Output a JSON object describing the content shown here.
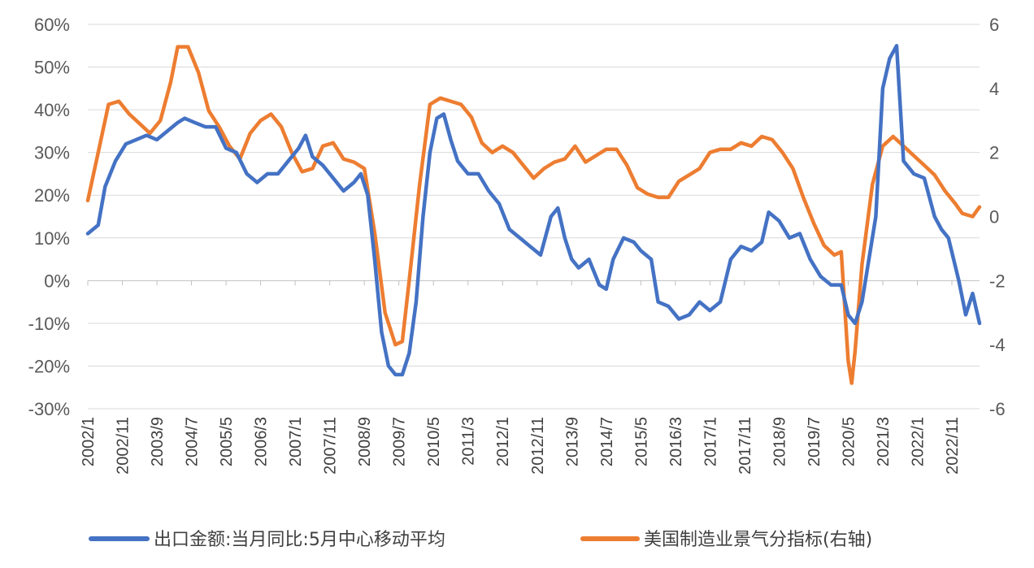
{
  "colors": {
    "export": "#4472C4",
    "pmi": "#ED7D31",
    "grid": "#d9d9d9",
    "text": "#595959"
  },
  "legend": {
    "export_label": "出口金额:当月同比:5月中心移动平均",
    "pmi_label": "美国制造业景气分指标(右轴)"
  },
  "chart_data": {
    "type": "line",
    "x_labels": [
      "2002/1",
      "2002/11",
      "2003/9",
      "2004/7",
      "2005/5",
      "2006/3",
      "2007/1",
      "2007/11",
      "2008/9",
      "2009/7",
      "2010/5",
      "2011/3",
      "2012/1",
      "2012/11",
      "2013/9",
      "2014/7",
      "2015/5",
      "2016/3",
      "2017/1",
      "2017/11",
      "2018/9",
      "2019/7",
      "2020/5",
      "2021/3",
      "2022/1",
      "2022/11"
    ],
    "x_range": [
      "2002-01",
      "2023-07"
    ],
    "y_left": {
      "min": -30,
      "max": 60,
      "step": 10,
      "tick_labels": [
        "-30%",
        "-20%",
        "-10%",
        "0%",
        "10%",
        "20%",
        "30%",
        "40%",
        "50%",
        "60%"
      ]
    },
    "y_right": {
      "min": -6,
      "max": 6,
      "step": 2,
      "tick_labels": [
        "-6",
        "-4",
        "-2",
        "0",
        "2",
        "4",
        "6"
      ]
    },
    "grid": "horizontal",
    "legend_position": "bottom",
    "series": [
      {
        "name": "出口金额:当月同比:5月中心移动平均",
        "axis": "left",
        "points": [
          [
            "2002-01",
            11
          ],
          [
            "2002-04",
            13
          ],
          [
            "2002-06",
            22
          ],
          [
            "2002-09",
            28
          ],
          [
            "2002-12",
            32
          ],
          [
            "2003-03",
            33
          ],
          [
            "2003-06",
            34
          ],
          [
            "2003-09",
            33
          ],
          [
            "2003-12",
            35
          ],
          [
            "2004-03",
            37
          ],
          [
            "2004-05",
            38
          ],
          [
            "2004-08",
            37
          ],
          [
            "2004-11",
            36
          ],
          [
            "2005-02",
            36
          ],
          [
            "2005-05",
            31
          ],
          [
            "2005-08",
            30
          ],
          [
            "2005-11",
            25
          ],
          [
            "2006-02",
            23
          ],
          [
            "2006-05",
            25
          ],
          [
            "2006-08",
            25
          ],
          [
            "2006-11",
            28
          ],
          [
            "2007-02",
            31
          ],
          [
            "2007-04",
            34
          ],
          [
            "2007-06",
            29
          ],
          [
            "2007-09",
            27
          ],
          [
            "2007-12",
            24
          ],
          [
            "2008-03",
            21
          ],
          [
            "2008-06",
            23
          ],
          [
            "2008-08",
            25
          ],
          [
            "2008-10",
            20
          ],
          [
            "2008-12",
            5
          ],
          [
            "2009-02",
            -12
          ],
          [
            "2009-04",
            -20
          ],
          [
            "2009-06",
            -22
          ],
          [
            "2009-08",
            -22
          ],
          [
            "2009-10",
            -17
          ],
          [
            "2009-12",
            -5
          ],
          [
            "2010-02",
            15
          ],
          [
            "2010-04",
            30
          ],
          [
            "2010-06",
            38
          ],
          [
            "2010-08",
            39
          ],
          [
            "2010-10",
            33
          ],
          [
            "2010-12",
            28
          ],
          [
            "2011-03",
            25
          ],
          [
            "2011-06",
            25
          ],
          [
            "2011-09",
            21
          ],
          [
            "2011-12",
            18
          ],
          [
            "2012-03",
            12
          ],
          [
            "2012-06",
            10
          ],
          [
            "2012-09",
            8
          ],
          [
            "2012-12",
            6
          ],
          [
            "2013-03",
            15
          ],
          [
            "2013-05",
            17
          ],
          [
            "2013-07",
            10
          ],
          [
            "2013-09",
            5
          ],
          [
            "2013-11",
            3
          ],
          [
            "2014-02",
            5
          ],
          [
            "2014-05",
            -1
          ],
          [
            "2014-07",
            -2
          ],
          [
            "2014-09",
            5
          ],
          [
            "2014-12",
            10
          ],
          [
            "2015-03",
            9
          ],
          [
            "2015-05",
            7
          ],
          [
            "2015-08",
            5
          ],
          [
            "2015-10",
            -5
          ],
          [
            "2016-01",
            -6
          ],
          [
            "2016-04",
            -9
          ],
          [
            "2016-07",
            -8
          ],
          [
            "2016-10",
            -5
          ],
          [
            "2017-01",
            -7
          ],
          [
            "2017-04",
            -5
          ],
          [
            "2017-07",
            5
          ],
          [
            "2017-10",
            8
          ],
          [
            "2018-01",
            7
          ],
          [
            "2018-04",
            9
          ],
          [
            "2018-06",
            16
          ],
          [
            "2018-09",
            14
          ],
          [
            "2018-12",
            10
          ],
          [
            "2019-03",
            11
          ],
          [
            "2019-06",
            5
          ],
          [
            "2019-09",
            1
          ],
          [
            "2019-12",
            -1
          ],
          [
            "2020-03",
            -1
          ],
          [
            "2020-05",
            -8
          ],
          [
            "2020-07",
            -10
          ],
          [
            "2020-09",
            -5
          ],
          [
            "2020-11",
            5
          ],
          [
            "2021-01",
            15
          ],
          [
            "2021-03",
            45
          ],
          [
            "2021-05",
            52
          ],
          [
            "2021-07",
            55
          ],
          [
            "2021-09",
            28
          ],
          [
            "2021-12",
            25
          ],
          [
            "2022-03",
            24
          ],
          [
            "2022-06",
            15
          ],
          [
            "2022-08",
            12
          ],
          [
            "2022-10",
            10
          ],
          [
            "2023-01",
            0
          ],
          [
            "2023-03",
            -8
          ],
          [
            "2023-05",
            -3
          ],
          [
            "2023-07",
            -10
          ]
        ]
      },
      {
        "name": "美国制造业景气分指标(右轴)",
        "axis": "right",
        "points": [
          [
            "2002-01",
            0.5
          ],
          [
            "2002-04",
            2.0
          ],
          [
            "2002-07",
            3.5
          ],
          [
            "2002-10",
            3.6
          ],
          [
            "2003-01",
            3.2
          ],
          [
            "2003-04",
            2.9
          ],
          [
            "2003-07",
            2.6
          ],
          [
            "2003-10",
            3.0
          ],
          [
            "2004-01",
            4.2
          ],
          [
            "2004-03",
            5.3
          ],
          [
            "2004-06",
            5.3
          ],
          [
            "2004-09",
            4.5
          ],
          [
            "2004-12",
            3.3
          ],
          [
            "2005-03",
            2.8
          ],
          [
            "2005-06",
            2.2
          ],
          [
            "2005-09",
            1.8
          ],
          [
            "2005-12",
            2.6
          ],
          [
            "2006-03",
            3.0
          ],
          [
            "2006-06",
            3.2
          ],
          [
            "2006-09",
            2.8
          ],
          [
            "2006-12",
            2.0
          ],
          [
            "2007-03",
            1.4
          ],
          [
            "2007-06",
            1.5
          ],
          [
            "2007-09",
            2.2
          ],
          [
            "2007-12",
            2.3
          ],
          [
            "2008-03",
            1.8
          ],
          [
            "2008-06",
            1.7
          ],
          [
            "2008-09",
            1.5
          ],
          [
            "2008-12",
            -0.5
          ],
          [
            "2009-03",
            -3.0
          ],
          [
            "2009-06",
            -4.0
          ],
          [
            "2009-08",
            -3.9
          ],
          [
            "2009-10",
            -2.0
          ],
          [
            "2010-01",
            1.0
          ],
          [
            "2010-04",
            3.5
          ],
          [
            "2010-07",
            3.7
          ],
          [
            "2010-10",
            3.6
          ],
          [
            "2011-01",
            3.5
          ],
          [
            "2011-04",
            3.1
          ],
          [
            "2011-07",
            2.3
          ],
          [
            "2011-10",
            2.0
          ],
          [
            "2012-01",
            2.2
          ],
          [
            "2012-04",
            2.0
          ],
          [
            "2012-07",
            1.6
          ],
          [
            "2012-10",
            1.2
          ],
          [
            "2013-01",
            1.5
          ],
          [
            "2013-04",
            1.7
          ],
          [
            "2013-07",
            1.8
          ],
          [
            "2013-10",
            2.2
          ],
          [
            "2014-01",
            1.7
          ],
          [
            "2014-04",
            1.9
          ],
          [
            "2014-07",
            2.1
          ],
          [
            "2014-10",
            2.1
          ],
          [
            "2015-01",
            1.6
          ],
          [
            "2015-04",
            0.9
          ],
          [
            "2015-07",
            0.7
          ],
          [
            "2015-10",
            0.6
          ],
          [
            "2016-01",
            0.6
          ],
          [
            "2016-04",
            1.1
          ],
          [
            "2016-07",
            1.3
          ],
          [
            "2016-10",
            1.5
          ],
          [
            "2017-01",
            2.0
          ],
          [
            "2017-04",
            2.1
          ],
          [
            "2017-07",
            2.1
          ],
          [
            "2017-10",
            2.3
          ],
          [
            "2018-01",
            2.2
          ],
          [
            "2018-04",
            2.5
          ],
          [
            "2018-07",
            2.4
          ],
          [
            "2018-10",
            2.0
          ],
          [
            "2019-01",
            1.5
          ],
          [
            "2019-04",
            0.6
          ],
          [
            "2019-07",
            -0.2
          ],
          [
            "2019-10",
            -0.9
          ],
          [
            "2020-01",
            -1.2
          ],
          [
            "2020-03",
            -1.1
          ],
          [
            "2020-05",
            -4.5
          ],
          [
            "2020-06",
            -5.2
          ],
          [
            "2020-07",
            -4.2
          ],
          [
            "2020-09",
            -1.5
          ],
          [
            "2020-12",
            1.0
          ],
          [
            "2021-03",
            2.2
          ],
          [
            "2021-06",
            2.5
          ],
          [
            "2021-09",
            2.2
          ],
          [
            "2021-12",
            1.9
          ],
          [
            "2022-03",
            1.6
          ],
          [
            "2022-06",
            1.3
          ],
          [
            "2022-09",
            0.8
          ],
          [
            "2022-12",
            0.4
          ],
          [
            "2023-02",
            0.1
          ],
          [
            "2023-05",
            0.0
          ],
          [
            "2023-07",
            0.3
          ]
        ]
      }
    ]
  }
}
